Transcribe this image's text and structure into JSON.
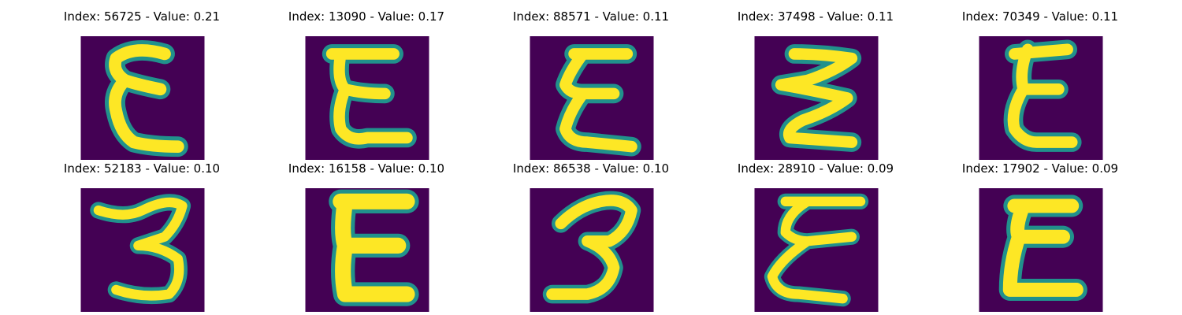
{
  "colors": {
    "background_dark": "#440154",
    "mid_teal": "#21918c",
    "edge_green": "#5ec962",
    "stroke_yellow": "#fde725"
  },
  "panels": [
    {
      "title": "Index: 56725 - Value: 0.21",
      "glyph": "E-handwritten"
    },
    {
      "title": "Index: 13090 - Value: 0.17",
      "glyph": "E-handwritten"
    },
    {
      "title": "Index: 88571 - Value: 0.11",
      "glyph": "E-handwritten"
    },
    {
      "title": "Index: 37498 - Value: 0.11",
      "glyph": "E-handwritten"
    },
    {
      "title": "Index: 70349 - Value: 0.11",
      "glyph": "E-handwritten"
    },
    {
      "title": "Index: 52183 - Value: 0.10",
      "glyph": "3-handwritten"
    },
    {
      "title": "Index: 16158 - Value: 0.10",
      "glyph": "E-handwritten"
    },
    {
      "title": "Index: 86538 - Value: 0.10",
      "glyph": "3-handwritten"
    },
    {
      "title": "Index: 28910 - Value: 0.09",
      "glyph": "E-handwritten"
    },
    {
      "title": "Index: 17902 - Value: 0.09",
      "glyph": "E-handwritten"
    }
  ]
}
